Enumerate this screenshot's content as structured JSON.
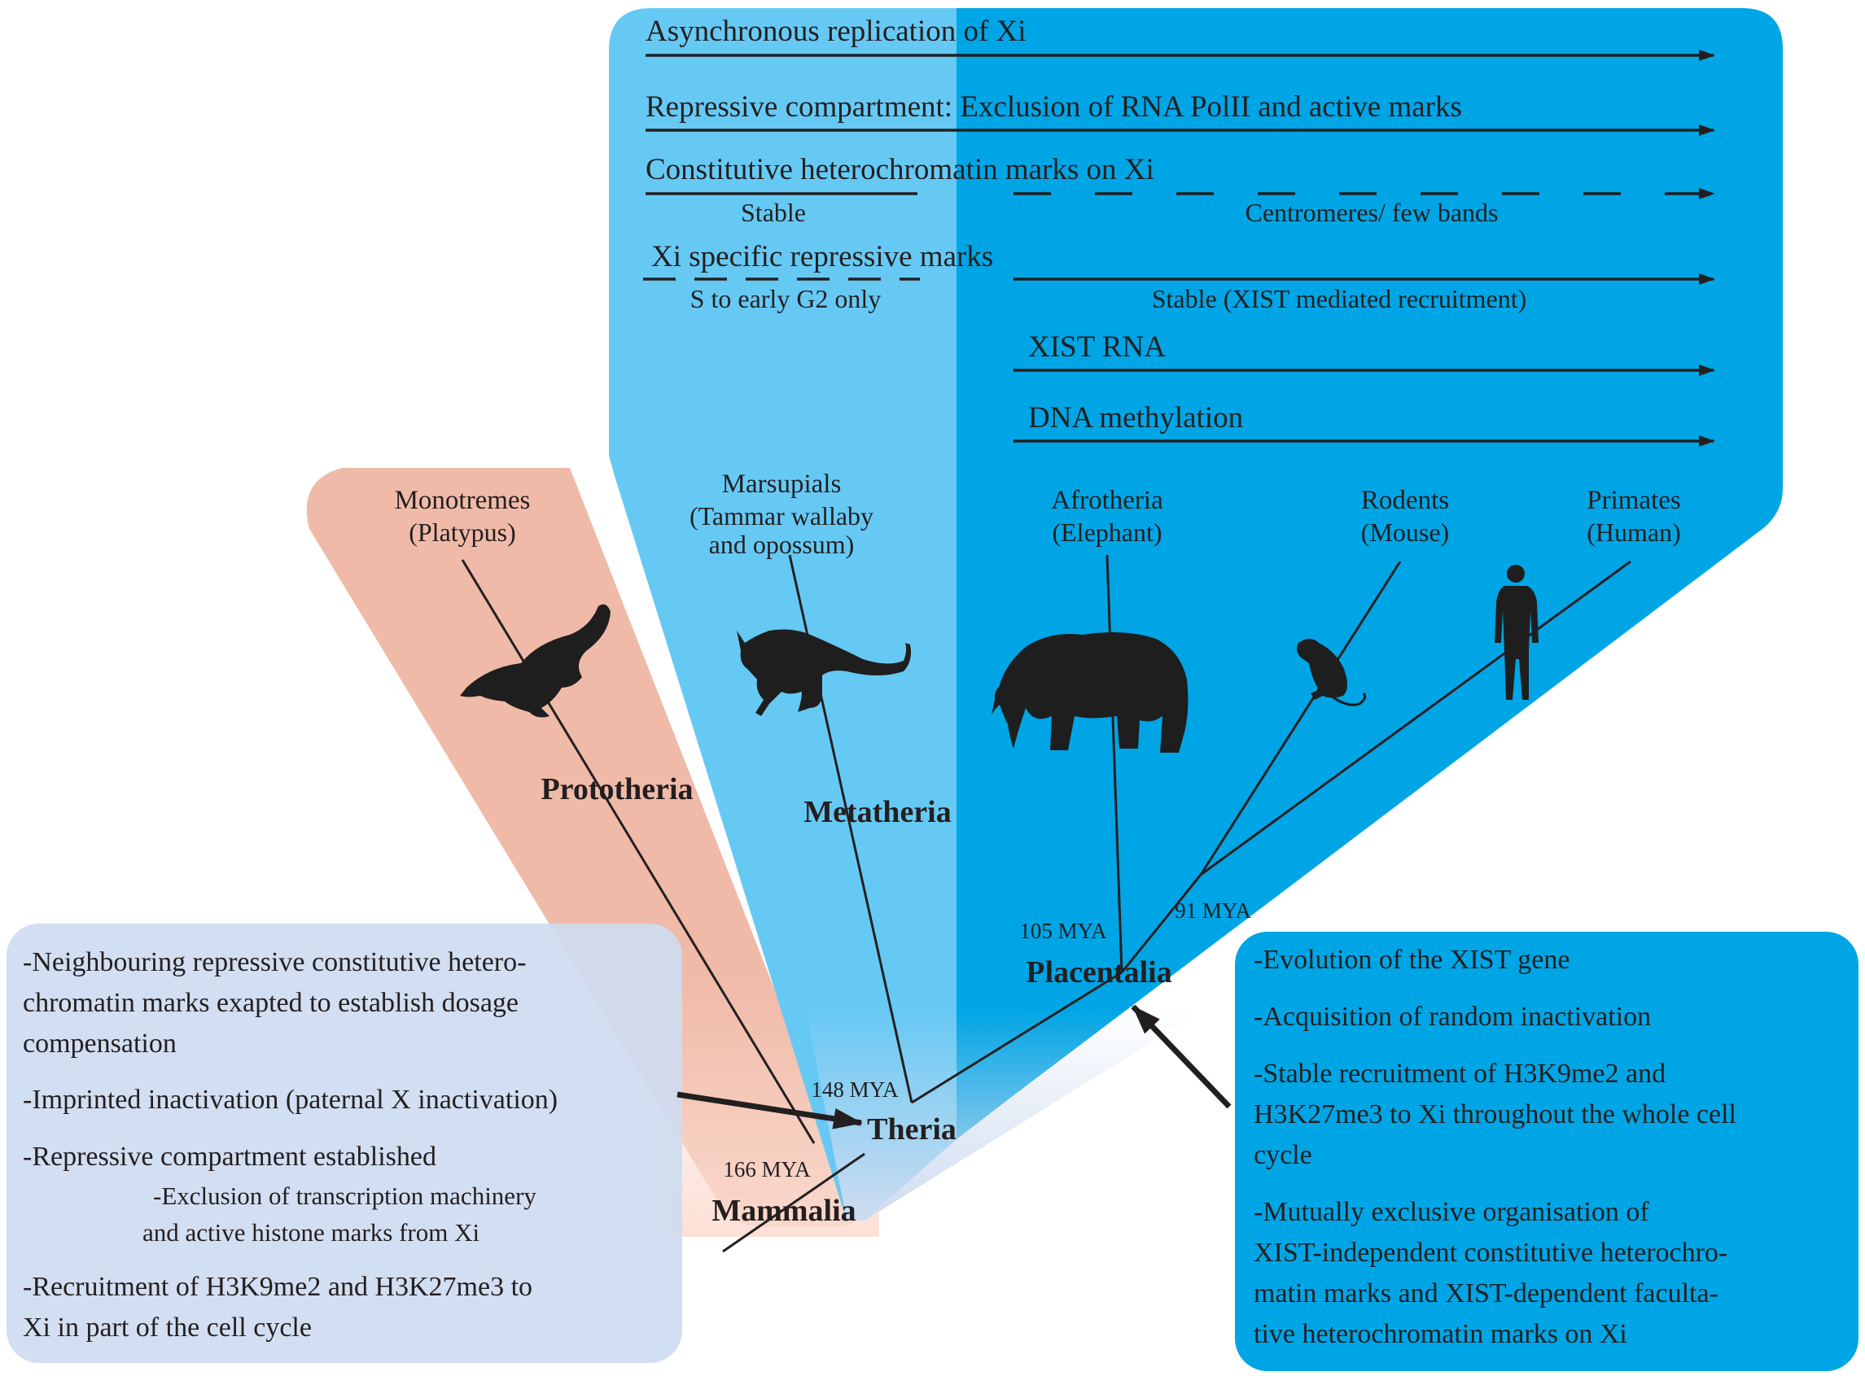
{
  "top_features": {
    "async": "Asynchronous replication of Xi",
    "repressive": "Repressive compartment: Exclusion of RNA PolII and active marks",
    "constitutive": "Constitutive heterochromatin marks on Xi",
    "constitutive_left": "Stable",
    "constitutive_right": "Centromeres/ few bands",
    "xi_specific": "Xi specific repressive marks",
    "xi_specific_left": "S to early G2 only",
    "xi_specific_right": "Stable (XIST mediated recruitment)",
    "xist_rna": "XIST RNA",
    "dna_methylation": "DNA methylation"
  },
  "taxa": {
    "monotremes": {
      "name": "Monotremes",
      "example": "(Platypus)"
    },
    "marsupials": {
      "name": "Marsupials",
      "example_1": "(Tammar wallaby",
      "example_2": "and opossum)"
    },
    "afrotheria": {
      "name": "Afrotheria",
      "example": "(Elephant)"
    },
    "rodents": {
      "name": "Rodents",
      "example": "(Mouse)"
    },
    "primates": {
      "name": "Primates",
      "example": "(Human)"
    }
  },
  "clades": {
    "prototheria": "Prototheria",
    "metatheria": "Metatheria",
    "placentalia": "Placentalia",
    "theria": "Theria",
    "mammalia": "Mammalia"
  },
  "divergence_times": {
    "mya_105": "105 MYA",
    "mya_91": "91 MYA",
    "mya_148": "148 MYA",
    "mya_166": "166 MYA"
  },
  "left_box": {
    "line1": "-Neighbouring repressive constitutive hetero-",
    "line2": "chromatin marks exapted to establish dosage",
    "line3": "compensation",
    "line4": "-Imprinted inactivation (paternal X inactivation)",
    "line5": "-Repressive compartment established",
    "line6": "-Exclusion of transcription machinery",
    "line7": "and active histone marks from Xi",
    "line8": "-Recruitment of H3K9me2 and H3K27me3 to",
    "line9": "Xi in part of the cell cycle"
  },
  "right_box": {
    "line1": "-Evolution of the XIST gene",
    "line2": "-Acquisition of random inactivation",
    "line3": "-Stable recruitment of H3K9me2 and",
    "line4": "H3K27me3 to Xi throughout the whole cell",
    "line5": "cycle",
    "line6": "-Mutually exclusive organisation of",
    "line7": "XIST-independent constitutive heterochro-",
    "line8": "matin marks and XIST-dependent faculta-",
    "line9": "tive heterochromatin marks on Xi"
  },
  "colors": {
    "metatheria_region": "#66c9f4",
    "placental_region": "#00a5e5",
    "prototheria_region": "#f0baa8",
    "mammalia_fade": "#fbddd2",
    "left_box_fill": "#cfdcf0",
    "right_box_fill": "#00a5e5",
    "ink": "#231f20"
  },
  "icons": [
    "platypus-silhouette",
    "kangaroo-silhouette",
    "elephant-silhouette",
    "mouse-silhouette",
    "human-silhouette"
  ]
}
